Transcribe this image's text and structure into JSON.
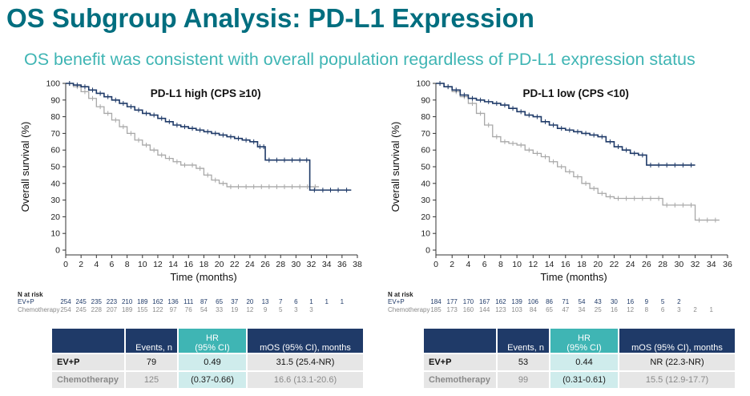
{
  "header": {
    "title": "OS Subgroup Analysis: PD-L1 Expression",
    "subtitle": "OS benefit was consistent with overall population regardless of PD-L1 expression status"
  },
  "colors": {
    "ev_p": "#1f3a68",
    "chemotherapy": "#a8a8a8",
    "header_navy": "#1f3a68",
    "header_teal": "#3fb5b4",
    "title_teal": "#006e7f"
  },
  "chart_data": [
    {
      "type": "line",
      "title": "PD-L1 high (CPS ≥10)",
      "xlabel": "Time (months)",
      "ylabel": "Overall survival (%)",
      "xlim": [
        0,
        38
      ],
      "ylim": [
        0,
        100
      ],
      "x_ticks": [
        0,
        2,
        4,
        6,
        8,
        10,
        12,
        14,
        16,
        18,
        20,
        22,
        24,
        26,
        28,
        30,
        32,
        34,
        36,
        38
      ],
      "y_ticks": [
        0,
        10,
        20,
        30,
        40,
        50,
        60,
        70,
        80,
        90,
        100
      ],
      "grid": false,
      "series": [
        {
          "name": "EV+P",
          "x": [
            0,
            1,
            2,
            3,
            4,
            5,
            6,
            7,
            8,
            9,
            10,
            11,
            12,
            13,
            14,
            15,
            16,
            17,
            18,
            19,
            20,
            21,
            22,
            23,
            24,
            25,
            25.6,
            26,
            27,
            28,
            29,
            30,
            31,
            31.8,
            33,
            34,
            35,
            36,
            37.2
          ],
          "y": [
            100,
            99,
            98,
            96,
            94,
            92,
            90,
            88,
            86,
            84,
            82,
            81,
            79,
            77,
            75,
            74,
            73,
            72,
            71,
            70,
            69,
            68,
            67,
            66,
            65,
            62,
            62,
            54,
            54,
            54,
            54,
            54,
            54,
            36,
            36,
            36,
            36,
            36,
            36
          ]
        },
        {
          "name": "Chemotherapy",
          "x": [
            0,
            1,
            2,
            3,
            4,
            5,
            6,
            7,
            8,
            9,
            10,
            11,
            12,
            13,
            14,
            15,
            16,
            17,
            18,
            19,
            20,
            21,
            22,
            23,
            24,
            25,
            26,
            27,
            28,
            29,
            30,
            31,
            32,
            33
          ],
          "y": [
            100,
            98,
            95,
            91,
            86,
            82,
            78,
            74,
            70,
            66,
            63,
            60,
            57,
            55,
            53,
            51,
            51,
            49,
            45,
            42,
            40,
            38,
            38,
            38,
            38,
            38,
            38,
            38,
            38,
            38,
            38,
            38,
            38,
            38
          ]
        }
      ],
      "risk_table": {
        "heading": "N at risk",
        "times": [
          0,
          2,
          4,
          6,
          8,
          10,
          12,
          14,
          16,
          18,
          20,
          22,
          24,
          26,
          28,
          30,
          32,
          34,
          36
        ],
        "rows": [
          {
            "label": "EV+P",
            "values": [
              "254",
              "245",
              "235",
              "223",
              "210",
              "189",
              "162",
              "136",
              "111",
              "87",
              "65",
              "37",
              "20",
              "13",
              "7",
              "6",
              "1",
              "1",
              "1"
            ]
          },
          {
            "label": "Chemotherapy",
            "values": [
              "254",
              "245",
              "228",
              "207",
              "189",
              "155",
              "122",
              "97",
              "76",
              "54",
              "33",
              "19",
              "12",
              "9",
              "5",
              "3",
              "3",
              "",
              ""
            ]
          }
        ]
      },
      "hr_table": {
        "headers": [
          "",
          "Events, n",
          "HR\n(95% CI)",
          "mOS (95% CI), months"
        ],
        "rows": [
          {
            "arm": "EV+P",
            "events": "79",
            "hr": "0.49",
            "mos": "31.5 (25.4-NR)"
          },
          {
            "arm": "Chemotherapy",
            "events": "125",
            "hr": "(0.37-0.66)",
            "mos": "16.6 (13.1-20.6)"
          }
        ]
      }
    },
    {
      "type": "line",
      "title": "PD-L1 low (CPS <10)",
      "xlabel": "Time (months)",
      "ylabel": "Overall survival (%)",
      "xlim": [
        0,
        36
      ],
      "ylim": [
        0,
        100
      ],
      "x_ticks": [
        0,
        2,
        4,
        6,
        8,
        10,
        12,
        14,
        16,
        18,
        20,
        22,
        24,
        26,
        28,
        30,
        32,
        34,
        36
      ],
      "y_ticks": [
        0,
        10,
        20,
        30,
        40,
        50,
        60,
        70,
        80,
        90,
        100
      ],
      "grid": false,
      "series": [
        {
          "name": "EV+P",
          "x": [
            0,
            1,
            2,
            3,
            4,
            5,
            6,
            7,
            8,
            9,
            10,
            11,
            12,
            13,
            14,
            15,
            16,
            17,
            18,
            19,
            20,
            21,
            22,
            23,
            24,
            25,
            26,
            27,
            28,
            29,
            30,
            31,
            32
          ],
          "y": [
            100,
            98,
            96,
            93,
            91,
            90,
            89,
            88,
            87,
            85,
            83,
            81,
            80,
            77,
            75,
            73,
            72,
            71,
            70,
            69,
            68,
            65,
            62,
            60,
            58,
            57,
            51,
            51,
            51,
            51,
            51,
            51,
            51
          ]
        },
        {
          "name": "Chemotherapy",
          "x": [
            0,
            1,
            2,
            3,
            4,
            5,
            6,
            7,
            8,
            9,
            10,
            11,
            12,
            13,
            14,
            15,
            16,
            17,
            18,
            19,
            20,
            21,
            22,
            23,
            24,
            25,
            26,
            27,
            28,
            29,
            30,
            31,
            32,
            33,
            34,
            35
          ],
          "y": [
            100,
            98,
            95,
            92,
            88,
            82,
            75,
            68,
            65,
            64,
            63,
            60,
            58,
            56,
            53,
            50,
            47,
            44,
            40,
            37,
            34,
            32,
            31,
            31,
            31,
            31,
            31,
            31,
            27,
            27,
            27,
            27,
            18,
            18,
            18,
            18
          ]
        }
      ],
      "risk_table": {
        "heading": "N at risk",
        "times": [
          0,
          2,
          4,
          6,
          8,
          10,
          12,
          14,
          16,
          18,
          20,
          22,
          24,
          26,
          28,
          30,
          32,
          34
        ],
        "rows": [
          {
            "label": "EV+P",
            "values": [
              "184",
              "177",
              "170",
              "167",
              "162",
              "139",
              "106",
              "86",
              "71",
              "54",
              "43",
              "30",
              "16",
              "9",
              "5",
              "2",
              "",
              ""
            ]
          },
          {
            "label": "Chemotherapy",
            "values": [
              "185",
              "173",
              "160",
              "144",
              "123",
              "103",
              "84",
              "65",
              "47",
              "34",
              "25",
              "16",
              "12",
              "8",
              "6",
              "3",
              "2",
              "1"
            ]
          }
        ]
      },
      "hr_table": {
        "headers": [
          "",
          "Events, n",
          "HR\n(95% CI)",
          "mOS (95% CI), months"
        ],
        "rows": [
          {
            "arm": "EV+P",
            "events": "53",
            "hr": "0.44",
            "mos": "NR (22.3-NR)"
          },
          {
            "arm": "Chemotherapy",
            "events": "99",
            "hr": "(0.31-0.61)",
            "mos": "15.5 (12.9-17.7)"
          }
        ]
      }
    }
  ]
}
